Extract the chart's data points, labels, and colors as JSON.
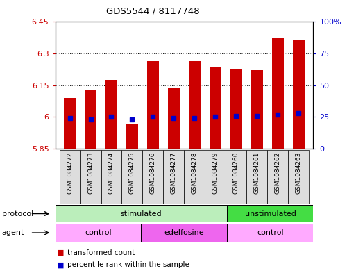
{
  "title": "GDS5544 / 8117748",
  "samples": [
    "GSM1084272",
    "GSM1084273",
    "GSM1084274",
    "GSM1084275",
    "GSM1084276",
    "GSM1084277",
    "GSM1084278",
    "GSM1084279",
    "GSM1084260",
    "GSM1084261",
    "GSM1084262",
    "GSM1084263"
  ],
  "transformed_counts": [
    6.09,
    6.125,
    6.175,
    5.965,
    6.265,
    6.135,
    6.265,
    6.235,
    6.225,
    6.22,
    6.375,
    6.365
  ],
  "percentile_ranks": [
    24,
    23,
    25,
    23,
    25,
    24,
    24,
    25,
    26,
    26,
    27,
    28
  ],
  "y_min": 5.85,
  "y_max": 6.45,
  "y_ticks": [
    5.85,
    6.0,
    6.15,
    6.3,
    6.45
  ],
  "y_tick_labels": [
    "5.85",
    "6",
    "6.15",
    "6.3",
    "6.45"
  ],
  "right_y_ticks": [
    0,
    25,
    50,
    75,
    100
  ],
  "right_y_labels": [
    "0",
    "25",
    "50",
    "75",
    "100%"
  ],
  "bar_color": "#cc0000",
  "dot_color": "#0000cc",
  "protocol_groups": [
    {
      "label": "stimulated",
      "start": 0,
      "end": 8,
      "color": "#bbeebb"
    },
    {
      "label": "unstimulated",
      "start": 8,
      "end": 12,
      "color": "#44dd44"
    }
  ],
  "agent_groups": [
    {
      "label": "control",
      "start": 0,
      "end": 4,
      "color": "#ffaaff"
    },
    {
      "label": "edelfosine",
      "start": 4,
      "end": 8,
      "color": "#ee66ee"
    },
    {
      "label": "control",
      "start": 8,
      "end": 12,
      "color": "#ffaaff"
    }
  ],
  "legend_items": [
    {
      "label": "transformed count",
      "color": "#cc0000"
    },
    {
      "label": "percentile rank within the sample",
      "color": "#0000cc"
    }
  ],
  "protocol_label": "protocol",
  "agent_label": "agent"
}
